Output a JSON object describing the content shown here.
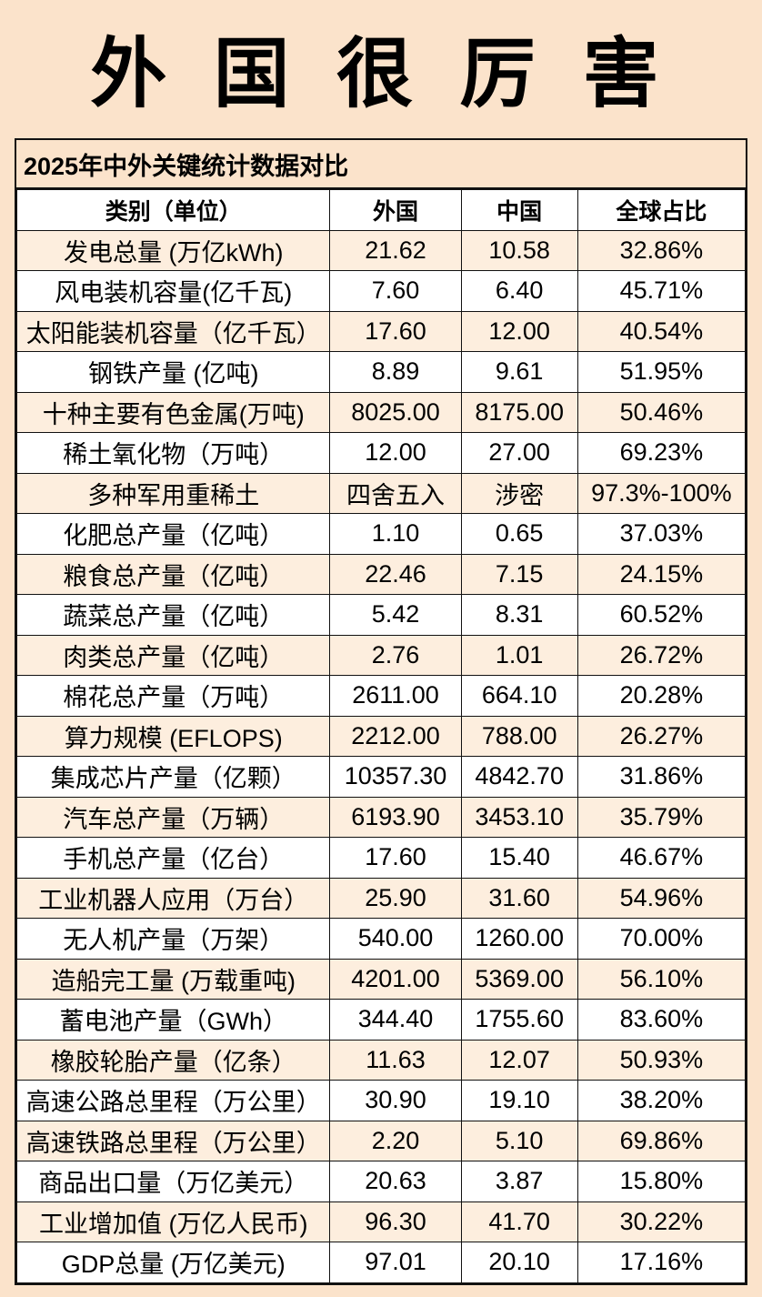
{
  "page": {
    "title": "外 国 很 厉 害",
    "subtitle": "2025年中外关键统计数据对比"
  },
  "colors": {
    "background": "#fbe3cb",
    "row_alt": "#fdeede",
    "row_base": "#ffffff",
    "border": "#111111",
    "text": "#000000"
  },
  "table": {
    "headers": [
      "类别（单位）",
      "外国",
      "中国",
      "全球占比"
    ],
    "rows": [
      [
        "发电总量 (万亿kWh)",
        "21.62",
        "10.58",
        "32.86%"
      ],
      [
        "风电装机容量(亿千瓦)",
        "7.60",
        "6.40",
        "45.71%"
      ],
      [
        "太阳能装机容量（亿千瓦）",
        "17.60",
        "12.00",
        "40.54%"
      ],
      [
        "钢铁产量 (亿吨)",
        "8.89",
        "9.61",
        "51.95%"
      ],
      [
        "十种主要有色金属(万吨)",
        "8025.00",
        "8175.00",
        "50.46%"
      ],
      [
        "稀土氧化物（万吨）",
        "12.00",
        "27.00",
        "69.23%"
      ],
      [
        "多种军用重稀土",
        "四舍五入",
        "涉密",
        "97.3%-100%"
      ],
      [
        "化肥总产量（亿吨）",
        "1.10",
        "0.65",
        "37.03%"
      ],
      [
        "粮食总产量（亿吨）",
        "22.46",
        "7.15",
        "24.15%"
      ],
      [
        "蔬菜总产量（亿吨）",
        "5.42",
        "8.31",
        "60.52%"
      ],
      [
        "肉类总产量（亿吨）",
        "2.76",
        "1.01",
        "26.72%"
      ],
      [
        "棉花总产量（万吨）",
        "2611.00",
        "664.10",
        "20.28%"
      ],
      [
        "算力规模 (EFLOPS)",
        "2212.00",
        "788.00",
        "26.27%"
      ],
      [
        "集成芯片产量（亿颗）",
        "10357.30",
        "4842.70",
        "31.86%"
      ],
      [
        "汽车总产量（万辆）",
        "6193.90",
        "3453.10",
        "35.79%"
      ],
      [
        "手机总产量（亿台）",
        "17.60",
        "15.40",
        "46.67%"
      ],
      [
        "工业机器人应用（万台）",
        "25.90",
        "31.60",
        "54.96%"
      ],
      [
        "无人机产量（万架）",
        "540.00",
        "1260.00",
        "70.00%"
      ],
      [
        "造船完工量 (万载重吨)",
        "4201.00",
        "5369.00",
        "56.10%"
      ],
      [
        "蓄电池产量（GWh）",
        "344.40",
        "1755.60",
        "83.60%"
      ],
      [
        "橡胶轮胎产量（亿条）",
        "11.63",
        "12.07",
        "50.93%"
      ],
      [
        "高速公路总里程（万公里）",
        "30.90",
        "19.10",
        "38.20%"
      ],
      [
        "高速铁路总里程（万公里）",
        "2.20",
        "5.10",
        "69.86%"
      ],
      [
        "商品出口量（万亿美元）",
        "20.63",
        "3.87",
        "15.80%"
      ],
      [
        "工业增加值 (万亿人民币)",
        "96.30",
        "41.70",
        "30.22%"
      ],
      [
        "GDP总量 (万亿美元)",
        "97.01",
        "20.10",
        "17.16%"
      ]
    ]
  }
}
